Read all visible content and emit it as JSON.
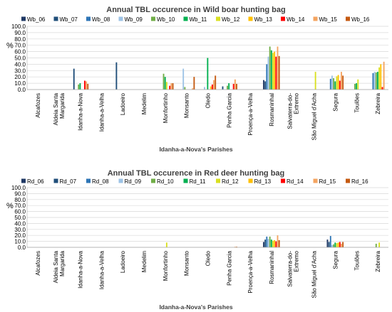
{
  "chart_data": [
    {
      "type": "bar",
      "title": "Annual  TBL occurence in Wild boar hunting bag",
      "xlabel": "Idanha-a-Nova's Parishes",
      "ylabel": "%",
      "ylim": [
        0,
        100
      ],
      "yticks": [
        "0.0",
        "10.0",
        "20.0",
        "30.0",
        "40.0",
        "50.0",
        "60.0",
        "70.0",
        "80.0",
        "90.0",
        "100.0"
      ],
      "legend_position": "top",
      "categories": [
        "Alcafozes",
        "Aldeia Santa Margarida",
        "Idanha-a-Nova",
        "Idanha-a-Velha",
        "Ladoeiro",
        "Medelim",
        "Monfortinho",
        "Monsanto",
        "Oledo",
        "Penha Garcia",
        "Proença-a-Velha",
        "Rosmaninhal",
        "Salvaterra-do-Extremo",
        "São Miguel d'Acha",
        "Segura",
        "Toulões",
        "Zebreira"
      ],
      "category_lines": [
        [
          "Alcafozes"
        ],
        [
          "Aldeia Santa",
          "Margarida"
        ],
        [
          "Idanha-a-Nova"
        ],
        [
          "Idanha-a-Velha"
        ],
        [
          "Ladoeiro"
        ],
        [
          "Medelim"
        ],
        [
          "Monfortinho"
        ],
        [
          "Monsanto"
        ],
        [
          "Oledo"
        ],
        [
          "Penha Garcia"
        ],
        [
          "Proença-a-Velha"
        ],
        [
          "Rosmaninhal"
        ],
        [
          "Salvaterra-do-",
          "Extremo"
        ],
        [
          "São Miguel d'Acha"
        ],
        [
          "Segura"
        ],
        [
          "Toulões"
        ],
        [
          "Zebreira"
        ]
      ],
      "series": [
        {
          "name": "Wb_06",
          "color": "#1f3864",
          "values": [
            0,
            0,
            0,
            0,
            0,
            0,
            0,
            0,
            0,
            0,
            0,
            15,
            0,
            0,
            0,
            0,
            0
          ]
        },
        {
          "name": "Wb_07",
          "color": "#1f4e79",
          "values": [
            0,
            0,
            33,
            0,
            43,
            0,
            0,
            0,
            0,
            5,
            0,
            13,
            0,
            0,
            0,
            0,
            0
          ]
        },
        {
          "name": "Wb_08",
          "color": "#2e75b6",
          "values": [
            0,
            0,
            0,
            0,
            0,
            0,
            0,
            0,
            0,
            0,
            0,
            40,
            0,
            0,
            17,
            0,
            26
          ]
        },
        {
          "name": "Wb_09",
          "color": "#9dc3e6",
          "values": [
            0,
            0,
            0,
            0,
            0,
            0,
            0,
            33,
            4,
            0,
            0,
            52,
            0,
            0,
            22,
            0,
            28
          ]
        },
        {
          "name": "Wb_10",
          "color": "#70ad47",
          "values": [
            0,
            0,
            8,
            0,
            0,
            0,
            25,
            4,
            0,
            6,
            0,
            68,
            0,
            0,
            18,
            9,
            27
          ]
        },
        {
          "name": "Wb_11",
          "color": "#00b050",
          "values": [
            0,
            0,
            10,
            0,
            0,
            0,
            20,
            0,
            50,
            10,
            0,
            62,
            0,
            0,
            13,
            10,
            28
          ]
        },
        {
          "name": "Wb_12",
          "color": "#d9e021",
          "values": [
            0,
            0,
            0,
            0,
            0,
            0,
            12,
            0,
            0,
            0,
            0,
            58,
            0,
            28,
            21,
            16,
            35
          ]
        },
        {
          "name": "Wb_13",
          "color": "#ffc000",
          "values": [
            0,
            0,
            0,
            0,
            0,
            0,
            0,
            0,
            5,
            0,
            0,
            60,
            0,
            0,
            23,
            0,
            40
          ]
        },
        {
          "name": "Wb_14",
          "color": "#ff0000",
          "values": [
            0,
            0,
            14,
            0,
            0,
            0,
            6,
            0,
            8,
            9,
            0,
            52,
            0,
            0,
            14,
            0,
            4
          ]
        },
        {
          "name": "Wb_15",
          "color": "#f4a460",
          "values": [
            0,
            0,
            13,
            0,
            0,
            0,
            10,
            2,
            15,
            16,
            0,
            68,
            0,
            0,
            28,
            0,
            44
          ]
        },
        {
          "name": "Wb_16",
          "color": "#c55a11",
          "values": [
            0,
            0,
            9,
            0,
            0,
            0,
            10,
            20,
            22,
            9,
            0,
            53,
            0,
            0,
            22,
            0,
            0
          ]
        }
      ]
    },
    {
      "type": "bar",
      "title": "Annual  TBL occurence in Red deer hunting bag",
      "xlabel": "Idanha-a-Nova's Parishes",
      "ylabel": "%",
      "ylim": [
        0,
        100
      ],
      "yticks": [
        "0.0",
        "10.0",
        "20.0",
        "30.0",
        "40.0",
        "50.0",
        "60.0",
        "70.0",
        "80.0",
        "90.0",
        "100.0"
      ],
      "legend_position": "top",
      "categories": [
        "Alcafozes",
        "Aldeia Santa Margarida",
        "Idanha-a-Nova",
        "Idanha-a-Velha",
        "Ladoeiro",
        "Medelim",
        "Monfortinho",
        "Monsanto",
        "Oledo",
        "Penha Garcia",
        "Proença-a-Velha",
        "Rosmaninhal",
        "Salvaterra-do-Extremo",
        "São Miguel d'Acha",
        "Segura",
        "Toulões",
        "Zebreira"
      ],
      "category_lines": [
        [
          "Alcafozes"
        ],
        [
          "Aldeia Santa",
          "Margarida"
        ],
        [
          "Idanha-a-Nova"
        ],
        [
          "Idanha-a-Velha"
        ],
        [
          "Ladoeiro"
        ],
        [
          "Medelim"
        ],
        [
          "Monfortinho"
        ],
        [
          "Monsanto"
        ],
        [
          "Oledo"
        ],
        [
          "Penha Garcia"
        ],
        [
          "Proença-a-Velha"
        ],
        [
          "Rosmaninhal"
        ],
        [
          "Salvaterra-do-",
          "Extremo"
        ],
        [
          "São Miguel d'Acha"
        ],
        [
          "Segura"
        ],
        [
          "Toulões"
        ],
        [
          "Zebreira"
        ]
      ],
      "series": [
        {
          "name": "Rd_06",
          "color": "#1f3864",
          "values": [
            0,
            0,
            0,
            0,
            0,
            0,
            0,
            0,
            0,
            0,
            0,
            9,
            0,
            0,
            13,
            0,
            0
          ]
        },
        {
          "name": "Rd_07",
          "color": "#1f4e79",
          "values": [
            0,
            0,
            0,
            0,
            0,
            0,
            0,
            0,
            0,
            0,
            0,
            13,
            0,
            0,
            9,
            0,
            0
          ]
        },
        {
          "name": "Rd_08",
          "color": "#2e75b6",
          "values": [
            0,
            0,
            0,
            0,
            0,
            0,
            0,
            0,
            0,
            0,
            0,
            18,
            0,
            0,
            19,
            0,
            0
          ]
        },
        {
          "name": "Rd_09",
          "color": "#9dc3e6",
          "values": [
            0,
            0,
            0,
            0,
            0,
            0,
            0,
            0,
            0,
            0,
            0,
            14,
            0,
            0,
            4,
            0,
            0
          ]
        },
        {
          "name": "Rd_10",
          "color": "#70ad47",
          "values": [
            0,
            0,
            0,
            0,
            0,
            0,
            0,
            0,
            0,
            0,
            0,
            18,
            0,
            0,
            5,
            0,
            6
          ]
        },
        {
          "name": "Rd_11",
          "color": "#00b050",
          "values": [
            0,
            0,
            0,
            0,
            0,
            0,
            0,
            0,
            0,
            0,
            0,
            13,
            0,
            0,
            8,
            0,
            0
          ]
        },
        {
          "name": "Rd_12",
          "color": "#d9e021",
          "values": [
            0,
            0,
            0,
            0,
            0,
            0,
            8,
            0,
            0,
            0,
            0,
            11,
            0,
            0,
            7,
            0,
            8
          ]
        },
        {
          "name": "Rd_13",
          "color": "#ffc000",
          "values": [
            0,
            0,
            0,
            0,
            0,
            0,
            0,
            0,
            0,
            0,
            0,
            12,
            0,
            0,
            8,
            0,
            0
          ]
        },
        {
          "name": "Rd_14",
          "color": "#ff0000",
          "values": [
            0,
            0,
            0,
            0,
            0,
            0,
            0,
            0,
            0,
            0,
            0,
            10,
            0,
            0,
            9,
            0,
            0
          ]
        },
        {
          "name": "Rd_15",
          "color": "#f4a460",
          "values": [
            0,
            0,
            0,
            0,
            0,
            0,
            0,
            0,
            0,
            1,
            0,
            20,
            0,
            0,
            6,
            0,
            0
          ]
        },
        {
          "name": "Rd_16",
          "color": "#c55a11",
          "values": [
            0,
            0,
            0,
            0,
            0,
            0,
            0,
            0,
            0,
            1,
            0,
            12,
            0,
            0,
            9,
            0,
            0
          ]
        }
      ]
    }
  ]
}
